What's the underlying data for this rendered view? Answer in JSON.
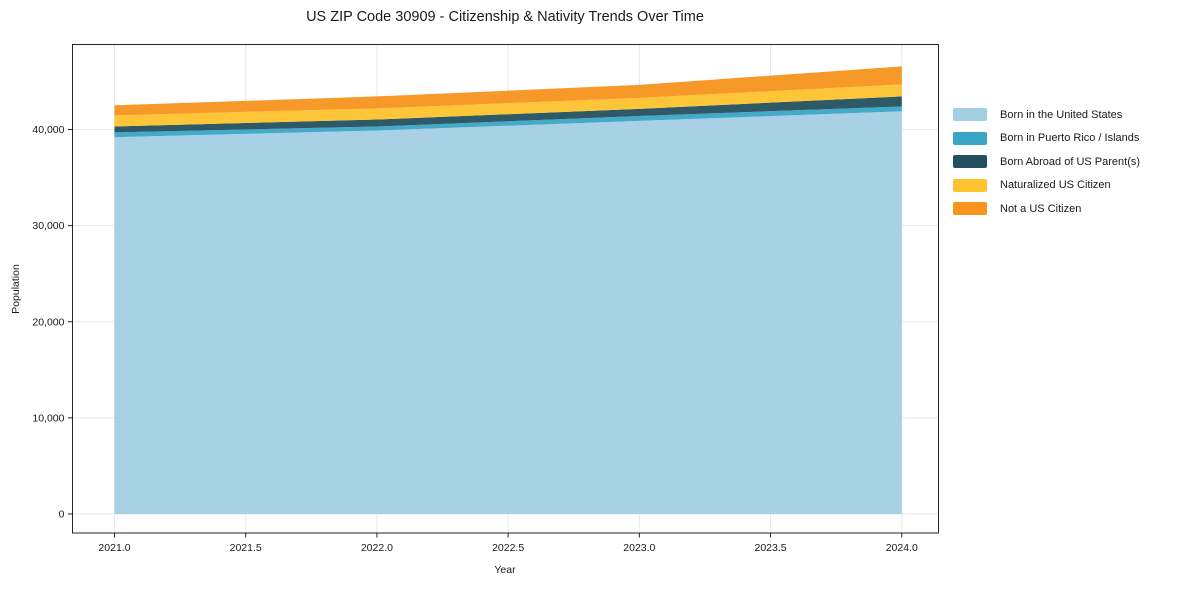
{
  "chart_data": {
    "type": "area",
    "stacked": true,
    "title": "US ZIP Code 30909 - Citizenship & Nativity Trends Over Time",
    "xlabel": "Year",
    "ylabel": "Population",
    "x": [
      2021,
      2022,
      2023,
      2024
    ],
    "series": [
      {
        "name": "Born in the United States",
        "color": "#a3cfe4",
        "values": [
          39200,
          39900,
          40900,
          41900
        ]
      },
      {
        "name": "Born in Puerto Rico / Islands",
        "color": "#3aa5c5",
        "values": [
          500,
          420,
          510,
          500
        ]
      },
      {
        "name": "Born Abroad of US Parent(s)",
        "color": "#23505f",
        "values": [
          620,
          730,
          740,
          1050
        ]
      },
      {
        "name": "Naturalized US Citizen",
        "color": "#fdc32e",
        "values": [
          1150,
          1150,
          1140,
          1250
        ]
      },
      {
        "name": "Not a US Citizen",
        "color": "#f7941e",
        "values": [
          1050,
          1250,
          1360,
          1870
        ]
      }
    ],
    "stacked_totals": [
      42520,
      43450,
      44650,
      46570
    ],
    "xlim": [
      2020.84,
      2024.14
    ],
    "ylim": [
      -1980,
      48850
    ],
    "xticks": {
      "values": [
        2021,
        2021.5,
        2022,
        2022.5,
        2023,
        2023.5,
        2024
      ],
      "labels": [
        "2021.0",
        "2021.5",
        "2022.0",
        "2022.5",
        "2023.0",
        "2023.5",
        "2024.0"
      ]
    },
    "yticks": {
      "values": [
        0,
        10000,
        20000,
        30000,
        40000
      ],
      "labels": [
        "0",
        "10,000",
        "20,000",
        "30,000",
        "40,000"
      ]
    },
    "grid": true,
    "legend_position": "right",
    "legend_frame": false,
    "colors": {
      "grid": "#e7e7e7",
      "spine": "#252525",
      "tick": "#252525",
      "text": "#1a1a1a",
      "background": "#ffffff"
    }
  }
}
